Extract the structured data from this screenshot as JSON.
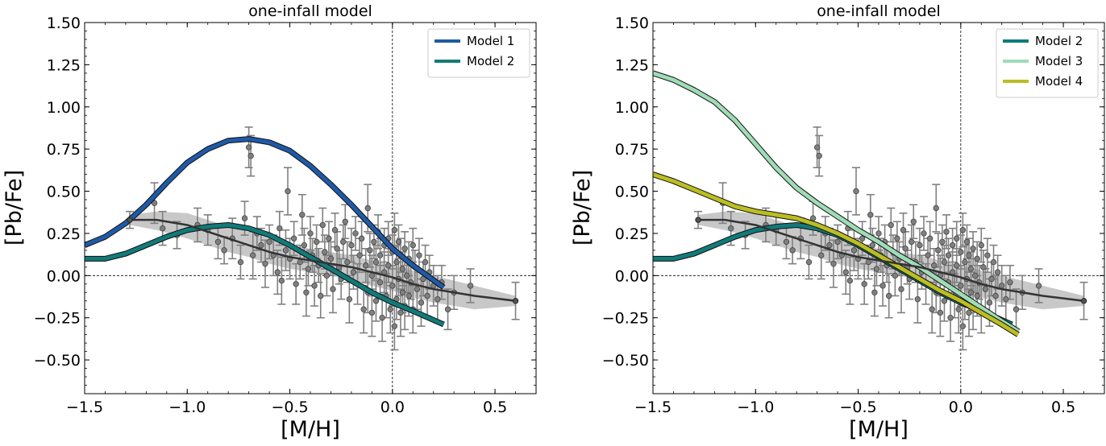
{
  "chart_data": [
    {
      "type": "line",
      "title": "one-infall model",
      "xlabel": "[M/H]",
      "ylabel": "[Pb/Fe]",
      "xlim": [
        -1.5,
        0.7
      ],
      "ylim": [
        -0.7,
        1.5
      ],
      "xticks": [
        -1.5,
        -1.0,
        -0.5,
        0.0,
        0.5
      ],
      "xtick_labels": [
        "−1.5",
        "−1.0",
        "−0.5",
        "0.0",
        "0.5"
      ],
      "yticks": [
        -0.5,
        -0.25,
        0.0,
        0.25,
        0.5,
        0.75,
        1.0,
        1.25,
        1.5
      ],
      "ytick_labels": [
        "−0.50",
        "−0.25",
        "0.00",
        "0.25",
        "0.50",
        "0.75",
        "1.00",
        "1.25",
        "1.50"
      ],
      "legend_position": "top-right",
      "series": [
        {
          "name": "Model 1",
          "color": "#1f5aa6",
          "x": [
            -1.5,
            -1.4,
            -1.3,
            -1.2,
            -1.1,
            -1.0,
            -0.9,
            -0.8,
            -0.7,
            -0.6,
            -0.5,
            -0.4,
            -0.3,
            -0.2,
            -0.1,
            0.0,
            0.1,
            0.25
          ],
          "y": [
            0.18,
            0.23,
            0.31,
            0.42,
            0.55,
            0.67,
            0.75,
            0.8,
            0.81,
            0.79,
            0.74,
            0.65,
            0.54,
            0.42,
            0.29,
            0.16,
            0.06,
            -0.07
          ]
        },
        {
          "name": "Model 2",
          "color": "#117a7a",
          "x": [
            -1.5,
            -1.4,
            -1.3,
            -1.2,
            -1.1,
            -1.0,
            -0.9,
            -0.8,
            -0.7,
            -0.6,
            -0.5,
            -0.4,
            -0.3,
            -0.2,
            -0.1,
            0.0,
            0.1,
            0.25
          ],
          "y": [
            0.1,
            0.1,
            0.13,
            0.18,
            0.23,
            0.27,
            0.29,
            0.3,
            0.28,
            0.24,
            0.18,
            0.11,
            0.04,
            -0.03,
            -0.1,
            -0.16,
            -0.21,
            -0.29
          ]
        }
      ],
      "trend": {
        "name": "median trend",
        "color": "#333333",
        "x": [
          -1.28,
          -1.15,
          -1.0,
          -0.9,
          -0.8,
          -0.7,
          -0.6,
          -0.5,
          -0.4,
          -0.3,
          -0.2,
          -0.1,
          0.0,
          0.1,
          0.2,
          0.3,
          0.4,
          0.6
        ],
        "y": [
          0.33,
          0.33,
          0.3,
          0.26,
          0.22,
          0.18,
          0.14,
          0.11,
          0.09,
          0.07,
          0.05,
          0.02,
          -0.01,
          -0.05,
          -0.08,
          -0.1,
          -0.12,
          -0.15
        ],
        "band_upper": [
          0.36,
          0.38,
          0.37,
          0.33,
          0.29,
          0.26,
          0.22,
          0.18,
          0.16,
          0.14,
          0.12,
          0.09,
          0.06,
          0.03,
          0.0,
          -0.03,
          -0.06,
          -0.12
        ],
        "band_lower": [
          0.3,
          0.27,
          0.22,
          0.18,
          0.14,
          0.11,
          0.07,
          0.04,
          0.02,
          0.0,
          -0.03,
          -0.06,
          -0.09,
          -0.13,
          -0.16,
          -0.18,
          -0.2,
          -0.18
        ]
      }
    },
    {
      "type": "line",
      "title": "one-infall model",
      "xlabel": "[M/H]",
      "ylabel": "[Pb/Fe]",
      "xlim": [
        -1.5,
        0.7
      ],
      "ylim": [
        -0.7,
        1.5
      ],
      "xticks": [
        -1.5,
        -1.0,
        -0.5,
        0.0,
        0.5
      ],
      "xtick_labels": [
        "−1.5",
        "−1.0",
        "−0.5",
        "0.0",
        "0.5"
      ],
      "yticks": [
        -0.5,
        -0.25,
        0.0,
        0.25,
        0.5,
        0.75,
        1.0,
        1.25,
        1.5
      ],
      "ytick_labels": [
        "−0.50",
        "−0.25",
        "0.00",
        "0.25",
        "0.50",
        "0.75",
        "1.00",
        "1.25",
        "1.50"
      ],
      "legend_position": "top-right",
      "series": [
        {
          "name": "Model 2",
          "color": "#117a7a",
          "x": [
            -1.5,
            -1.4,
            -1.3,
            -1.2,
            -1.1,
            -1.0,
            -0.9,
            -0.8,
            -0.7,
            -0.6,
            -0.5,
            -0.4,
            -0.3,
            -0.2,
            -0.1,
            0.0,
            0.1,
            0.25
          ],
          "y": [
            0.1,
            0.1,
            0.13,
            0.18,
            0.23,
            0.27,
            0.29,
            0.3,
            0.28,
            0.24,
            0.18,
            0.11,
            0.04,
            -0.03,
            -0.1,
            -0.16,
            -0.21,
            -0.29
          ]
        },
        {
          "name": "Model 3",
          "color": "#9fdcb6",
          "x": [
            -1.5,
            -1.4,
            -1.3,
            -1.2,
            -1.1,
            -1.0,
            -0.9,
            -0.8,
            -0.7,
            -0.6,
            -0.5,
            -0.4,
            -0.3,
            -0.2,
            -0.1,
            0.0,
            0.1,
            0.2,
            0.28
          ],
          "y": [
            1.2,
            1.16,
            1.1,
            1.03,
            0.92,
            0.78,
            0.64,
            0.52,
            0.43,
            0.35,
            0.27,
            0.2,
            0.12,
            0.05,
            -0.03,
            -0.11,
            -0.19,
            -0.27,
            -0.33
          ]
        },
        {
          "name": "Model 4",
          "color": "#bcbd22",
          "x": [
            -1.5,
            -1.4,
            -1.3,
            -1.2,
            -1.1,
            -1.0,
            -0.9,
            -0.8,
            -0.7,
            -0.6,
            -0.5,
            -0.4,
            -0.3,
            -0.2,
            -0.1,
            0.0,
            0.1,
            0.2,
            0.28
          ],
          "y": [
            0.6,
            0.56,
            0.51,
            0.46,
            0.41,
            0.38,
            0.36,
            0.34,
            0.3,
            0.25,
            0.19,
            0.12,
            0.05,
            -0.02,
            -0.09,
            -0.15,
            -0.22,
            -0.29,
            -0.35
          ]
        }
      ],
      "trend": {
        "name": "median trend",
        "color": "#333333",
        "x": [
          -1.28,
          -1.15,
          -1.0,
          -0.9,
          -0.8,
          -0.7,
          -0.6,
          -0.5,
          -0.4,
          -0.3,
          -0.2,
          -0.1,
          0.0,
          0.1,
          0.2,
          0.3,
          0.4,
          0.6
        ],
        "y": [
          0.33,
          0.33,
          0.3,
          0.26,
          0.22,
          0.18,
          0.14,
          0.11,
          0.09,
          0.07,
          0.05,
          0.02,
          -0.01,
          -0.05,
          -0.08,
          -0.1,
          -0.12,
          -0.15
        ],
        "band_upper": [
          0.36,
          0.38,
          0.37,
          0.33,
          0.29,
          0.26,
          0.22,
          0.18,
          0.16,
          0.14,
          0.12,
          0.09,
          0.06,
          0.03,
          0.0,
          -0.03,
          -0.06,
          -0.12
        ],
        "band_lower": [
          0.3,
          0.27,
          0.22,
          0.18,
          0.14,
          0.11,
          0.07,
          0.04,
          0.02,
          0.0,
          -0.03,
          -0.06,
          -0.09,
          -0.13,
          -0.16,
          -0.18,
          -0.2,
          -0.18
        ]
      }
    }
  ],
  "observations": {
    "name": "stellar data",
    "color": "#808080",
    "points": [
      [
        -1.28,
        0.33,
        0.05
      ],
      [
        -1.16,
        0.43,
        0.12
      ],
      [
        -1.12,
        0.28,
        0.1
      ],
      [
        -1.05,
        0.24,
        0.08
      ],
      [
        -0.95,
        0.3,
        0.1
      ],
      [
        -0.9,
        0.27,
        0.09
      ],
      [
        -0.85,
        0.2,
        0.1
      ],
      [
        -0.82,
        0.15,
        0.08
      ],
      [
        -0.78,
        0.22,
        0.12
      ],
      [
        -0.74,
        0.08,
        0.1
      ],
      [
        -0.72,
        0.34,
        0.1
      ],
      [
        -0.7,
        0.76,
        0.12
      ],
      [
        -0.69,
        0.71,
        0.12
      ],
      [
        -0.68,
        0.12,
        0.14
      ],
      [
        -0.66,
        0.25,
        0.1
      ],
      [
        -0.64,
        0.18,
        0.1
      ],
      [
        -0.62,
        0.07,
        0.14
      ],
      [
        -0.6,
        0.2,
        0.1
      ],
      [
        -0.58,
        0.12,
        0.12
      ],
      [
        -0.56,
        0.02,
        0.13
      ],
      [
        -0.55,
        0.28,
        0.1
      ],
      [
        -0.54,
        -0.03,
        0.14
      ],
      [
        -0.52,
        0.15,
        0.12
      ],
      [
        -0.51,
        0.5,
        0.14
      ],
      [
        -0.5,
        0.1,
        0.12
      ],
      [
        -0.48,
        0.22,
        0.1
      ],
      [
        -0.47,
        -0.05,
        0.12
      ],
      [
        -0.45,
        0.08,
        0.1
      ],
      [
        -0.44,
        0.36,
        0.12
      ],
      [
        -0.43,
        0.18,
        0.1
      ],
      [
        -0.42,
        -0.1,
        0.14
      ],
      [
        -0.41,
        0.04,
        0.1
      ],
      [
        -0.4,
        0.25,
        0.1
      ],
      [
        -0.39,
        0.12,
        0.1
      ],
      [
        -0.38,
        -0.06,
        0.12
      ],
      [
        -0.37,
        0.2,
        0.1
      ],
      [
        -0.36,
        0.06,
        0.1
      ],
      [
        -0.35,
        -0.12,
        0.13
      ],
      [
        -0.34,
        0.3,
        0.1
      ],
      [
        -0.33,
        0.14,
        0.1
      ],
      [
        -0.32,
        0.0,
        0.12
      ],
      [
        -0.31,
        0.22,
        0.1
      ],
      [
        -0.3,
        0.1,
        0.1
      ],
      [
        -0.29,
        -0.08,
        0.14
      ],
      [
        -0.28,
        0.27,
        0.1
      ],
      [
        -0.27,
        0.16,
        0.1
      ],
      [
        -0.26,
        0.05,
        0.1
      ],
      [
        -0.25,
        -0.02,
        0.12
      ],
      [
        -0.24,
        0.2,
        0.1
      ],
      [
        -0.23,
        0.32,
        0.1
      ],
      [
        -0.22,
        0.08,
        0.12
      ],
      [
        -0.21,
        -0.14,
        0.14
      ],
      [
        -0.2,
        0.18,
        0.1
      ],
      [
        -0.19,
        0.02,
        0.1
      ],
      [
        -0.18,
        0.25,
        0.1
      ],
      [
        -0.17,
        -0.05,
        0.12
      ],
      [
        -0.16,
        0.12,
        0.1
      ],
      [
        -0.15,
        0.22,
        0.1
      ],
      [
        -0.14,
        -0.2,
        0.14
      ],
      [
        -0.13,
        0.06,
        0.1
      ],
      [
        -0.12,
        0.4,
        0.14
      ],
      [
        -0.12,
        -0.1,
        0.12
      ],
      [
        -0.11,
        0.15,
        0.1
      ],
      [
        -0.1,
        0.0,
        0.12
      ],
      [
        -0.1,
        -0.22,
        0.14
      ],
      [
        -0.09,
        0.2,
        0.1
      ],
      [
        -0.08,
        0.08,
        0.1
      ],
      [
        -0.08,
        -0.15,
        0.12
      ],
      [
        -0.07,
        0.26,
        0.1
      ],
      [
        -0.06,
        -0.04,
        0.1
      ],
      [
        -0.06,
        0.12,
        0.1
      ],
      [
        -0.05,
        -0.25,
        0.14
      ],
      [
        -0.04,
        0.18,
        0.1
      ],
      [
        -0.04,
        0.02,
        0.12
      ],
      [
        -0.03,
        -0.12,
        0.13
      ],
      [
        -0.02,
        0.22,
        0.1
      ],
      [
        -0.02,
        0.06,
        0.1
      ],
      [
        -0.01,
        -0.2,
        0.14
      ],
      [
        0.0,
        0.14,
        0.1
      ],
      [
        0.0,
        -0.06,
        0.12
      ],
      [
        0.01,
        0.27,
        0.1
      ],
      [
        0.01,
        -0.3,
        0.14
      ],
      [
        0.02,
        0.08,
        0.1
      ],
      [
        0.02,
        -0.14,
        0.12
      ],
      [
        0.03,
        0.2,
        0.1
      ],
      [
        0.03,
        -0.02,
        0.1
      ],
      [
        0.04,
        0.12,
        0.1
      ],
      [
        0.04,
        -0.22,
        0.14
      ],
      [
        0.05,
        0.04,
        0.1
      ],
      [
        0.05,
        -0.1,
        0.12
      ],
      [
        0.06,
        0.16,
        0.1
      ],
      [
        0.06,
        -0.18,
        0.14
      ],
      [
        0.07,
        0.0,
        0.1
      ],
      [
        0.08,
        0.1,
        0.1
      ],
      [
        0.08,
        -0.12,
        0.12
      ],
      [
        0.09,
        -0.04,
        0.1
      ],
      [
        0.1,
        0.18,
        0.1
      ],
      [
        0.1,
        -0.2,
        0.14
      ],
      [
        0.11,
        0.05,
        0.1
      ],
      [
        0.12,
        -0.08,
        0.12
      ],
      [
        0.13,
        0.12,
        0.1
      ],
      [
        0.14,
        -0.16,
        0.14
      ],
      [
        0.15,
        -0.02,
        0.1
      ],
      [
        0.16,
        0.08,
        0.1
      ],
      [
        0.17,
        -0.12,
        0.12
      ],
      [
        0.18,
        0.02,
        0.1
      ],
      [
        0.2,
        -0.06,
        0.12
      ],
      [
        0.22,
        -0.14,
        0.14
      ],
      [
        0.24,
        -0.04,
        0.1
      ],
      [
        0.27,
        -0.2,
        0.12
      ],
      [
        0.3,
        -0.1,
        0.1
      ],
      [
        0.38,
        -0.06,
        0.1
      ],
      [
        0.6,
        -0.15,
        0.11
      ]
    ]
  }
}
